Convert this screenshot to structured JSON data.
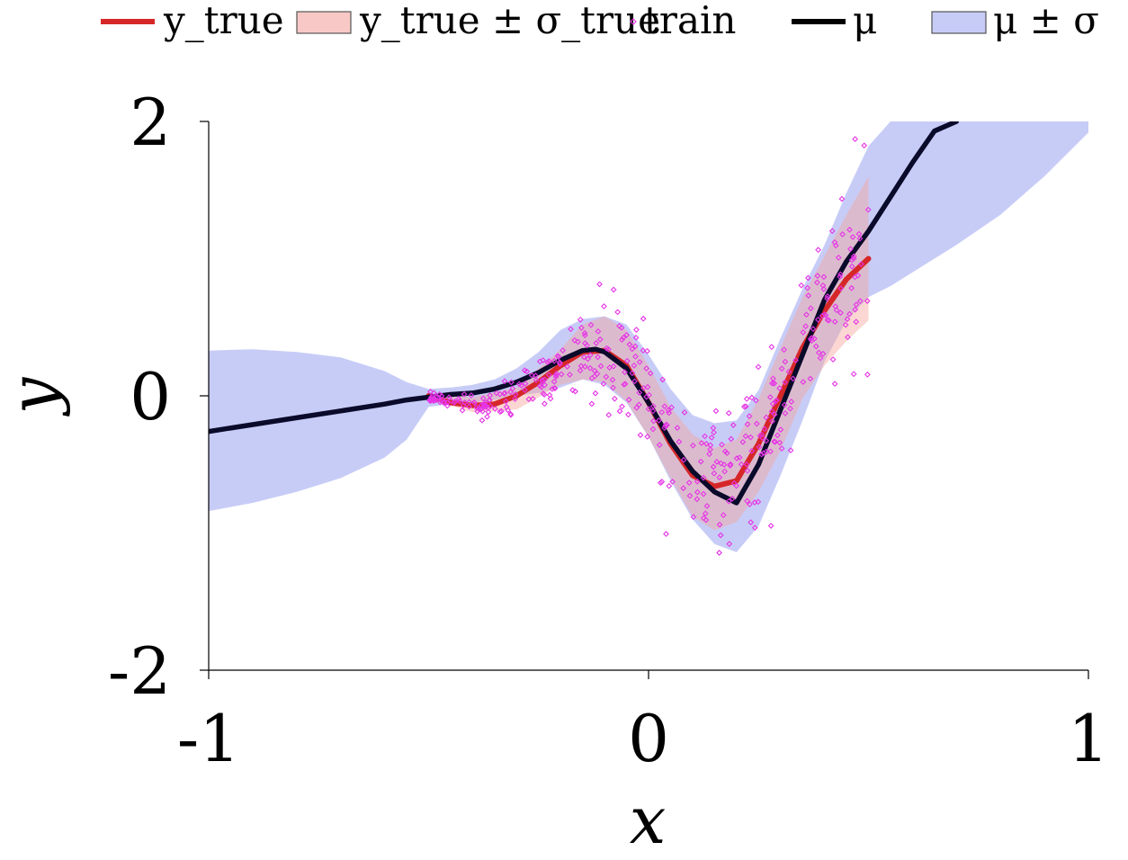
{
  "chart_data": {
    "type": "line",
    "title": "",
    "xlabel": "x",
    "ylabel": "y",
    "xlim": [
      -1,
      1
    ],
    "ylim": [
      -2,
      2
    ],
    "xticks": [
      "-1",
      "0",
      "1"
    ],
    "yticks": [
      "-2",
      "0",
      "2"
    ],
    "grid": false,
    "legend_position": "top",
    "legend": [
      {
        "key": "ytrue",
        "label": "y_true",
        "style": "line",
        "color": "#d62728"
      },
      {
        "key": "ytrue_band",
        "label": "y_true ± σ_true",
        "style": "patch",
        "color": "#f8c8c6"
      },
      {
        "key": "train",
        "label": "train",
        "style": "marker",
        "color": "#e634e6"
      },
      {
        "key": "mu",
        "label": "μ",
        "style": "line",
        "color": "#000000"
      },
      {
        "key": "mu_band",
        "label": "μ ± σ",
        "style": "patch",
        "color": "#c7ccf7"
      }
    ],
    "series": [
      {
        "name": "y_true",
        "x": [
          -0.5,
          -0.45,
          -0.4,
          -0.35,
          -0.3,
          -0.25,
          -0.2,
          -0.15,
          -0.1,
          -0.05,
          0,
          0.05,
          0.1,
          0.15,
          0.2,
          0.25,
          0.3,
          0.35,
          0.4,
          0.45,
          0.5
        ],
        "y": [
          0.0,
          -0.05,
          -0.07,
          -0.06,
          0.0,
          0.1,
          0.22,
          0.32,
          0.33,
          0.22,
          -0.05,
          -0.35,
          -0.58,
          -0.66,
          -0.62,
          -0.35,
          0.0,
          0.35,
          0.62,
          0.85,
          1.0
        ]
      },
      {
        "name": "y_true ± σ_true",
        "x": [
          -0.5,
          -0.4,
          -0.3,
          -0.2,
          -0.15,
          -0.1,
          -0.05,
          0,
          0.05,
          0.1,
          0.15,
          0.2,
          0.25,
          0.3,
          0.35,
          0.4,
          0.45,
          0.5
        ],
        "upper": [
          0.02,
          -0.01,
          0.06,
          0.34,
          0.52,
          0.58,
          0.48,
          0.22,
          -0.08,
          -0.28,
          -0.38,
          -0.32,
          -0.02,
          0.35,
          0.72,
          1.02,
          1.32,
          1.6
        ],
        "lower": [
          -0.02,
          -0.12,
          -0.1,
          0.08,
          0.12,
          0.1,
          -0.04,
          -0.3,
          -0.6,
          -0.88,
          -0.98,
          -0.92,
          -0.7,
          -0.4,
          -0.02,
          0.22,
          0.4,
          0.55
        ]
      },
      {
        "name": "μ",
        "x": [
          -1.0,
          -0.9,
          -0.8,
          -0.7,
          -0.6,
          -0.55,
          -0.5,
          -0.45,
          -0.4,
          -0.35,
          -0.3,
          -0.25,
          -0.2,
          -0.15,
          -0.12,
          -0.1,
          -0.05,
          0,
          0.05,
          0.1,
          0.15,
          0.2,
          0.25,
          0.3,
          0.35,
          0.4,
          0.45,
          0.5,
          0.55,
          0.6,
          0.65,
          0.7
        ],
        "y": [
          -0.26,
          -0.21,
          -0.16,
          -0.11,
          -0.06,
          -0.03,
          -0.01,
          0.01,
          0.02,
          0.05,
          0.1,
          0.17,
          0.26,
          0.33,
          0.34,
          0.32,
          0.2,
          -0.05,
          -0.33,
          -0.55,
          -0.7,
          -0.78,
          -0.5,
          -0.1,
          0.3,
          0.7,
          0.98,
          1.2,
          1.45,
          1.7,
          1.93,
          2.0
        ]
      },
      {
        "name": "μ ± σ",
        "x": [
          -1.0,
          -0.9,
          -0.8,
          -0.7,
          -0.6,
          -0.55,
          -0.5,
          -0.45,
          -0.4,
          -0.35,
          -0.3,
          -0.25,
          -0.2,
          -0.15,
          -0.1,
          -0.05,
          0,
          0.05,
          0.1,
          0.15,
          0.2,
          0.25,
          0.3,
          0.35,
          0.4,
          0.45,
          0.5,
          0.55,
          0.6,
          0.7,
          0.8,
          0.9,
          1.0
        ],
        "upper": [
          0.33,
          0.34,
          0.32,
          0.28,
          0.18,
          0.1,
          0.05,
          0.06,
          0.08,
          0.12,
          0.2,
          0.32,
          0.48,
          0.56,
          0.58,
          0.52,
          0.3,
          0.05,
          -0.14,
          -0.2,
          -0.18,
          0.04,
          0.42,
          0.78,
          1.1,
          1.48,
          1.82,
          2.0,
          2.0,
          2.0,
          2.0,
          2.0,
          2.0
        ],
        "lower": [
          -0.84,
          -0.78,
          -0.7,
          -0.6,
          -0.45,
          -0.32,
          -0.08,
          -0.06,
          -0.05,
          -0.03,
          0.0,
          0.02,
          0.06,
          0.12,
          0.08,
          -0.05,
          -0.3,
          -0.62,
          -0.9,
          -1.08,
          -1.14,
          -0.95,
          -0.58,
          -0.18,
          0.25,
          0.55,
          0.72,
          0.8,
          0.9,
          1.1,
          1.32,
          1.6,
          1.92
        ]
      }
    ],
    "train": {
      "n": 420,
      "x_range": [
        -0.5,
        0.5
      ],
      "marker": "diamond-open",
      "color": "#e634e6"
    }
  }
}
